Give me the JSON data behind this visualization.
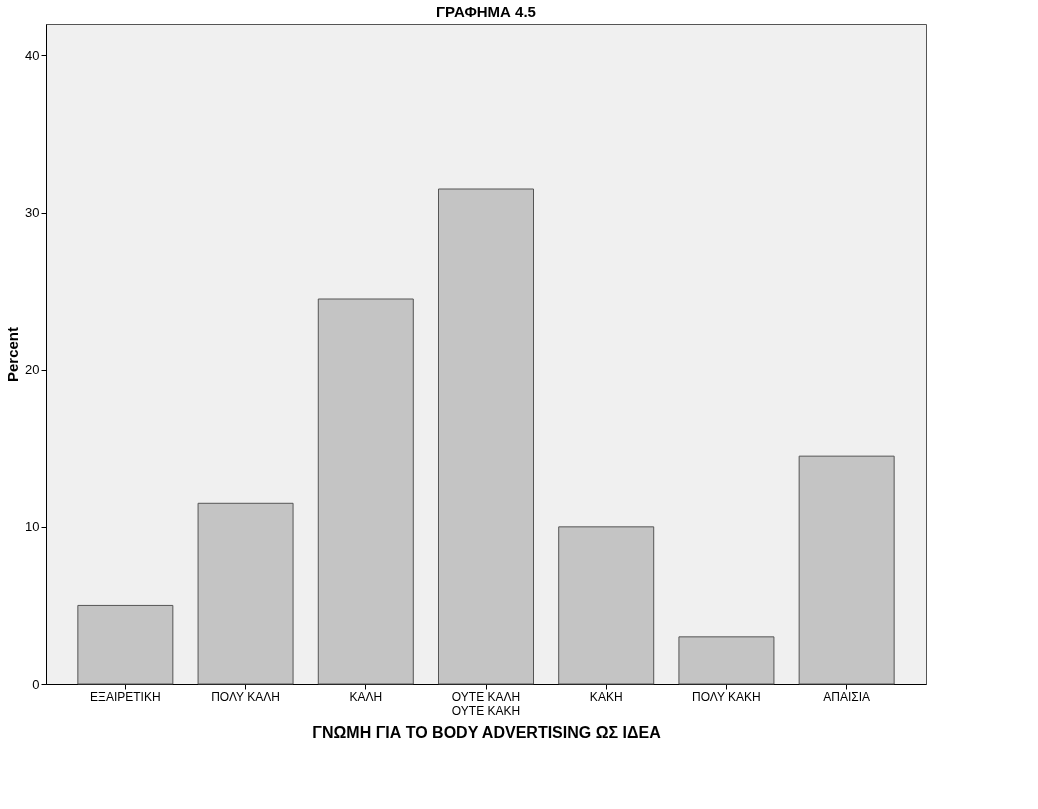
{
  "chart_data": {
    "type": "bar",
    "title": "ΓΡΑΦΗΜΑ 4.5",
    "xlabel": "ΓΝΩΜΗ ΓΙΑ ΤΟ BODY ADVERTISING ΩΣ ΙΔΕΑ",
    "ylabel": "Percent",
    "categories": [
      "ΕΞΑΙΡΕΤΙΚΗ",
      "ΠΟΛΥ ΚΑΛΗ",
      "ΚΑΛΗ",
      "ΟΥΤΕ ΚΑΛΗ\nΟΥΤΕ ΚΑΚΗ",
      "ΚΑΚΗ",
      "ΠΟΛΥ ΚΑΚΗ",
      "ΑΠΑΙΣΙΑ"
    ],
    "values": [
      5.0,
      11.5,
      24.5,
      31.5,
      10.0,
      3.0,
      14.5
    ],
    "color": "#c4c4c4",
    "ylim": [
      0,
      42
    ],
    "yticks": [
      0,
      10,
      20,
      30,
      40
    ],
    "grid": false
  }
}
